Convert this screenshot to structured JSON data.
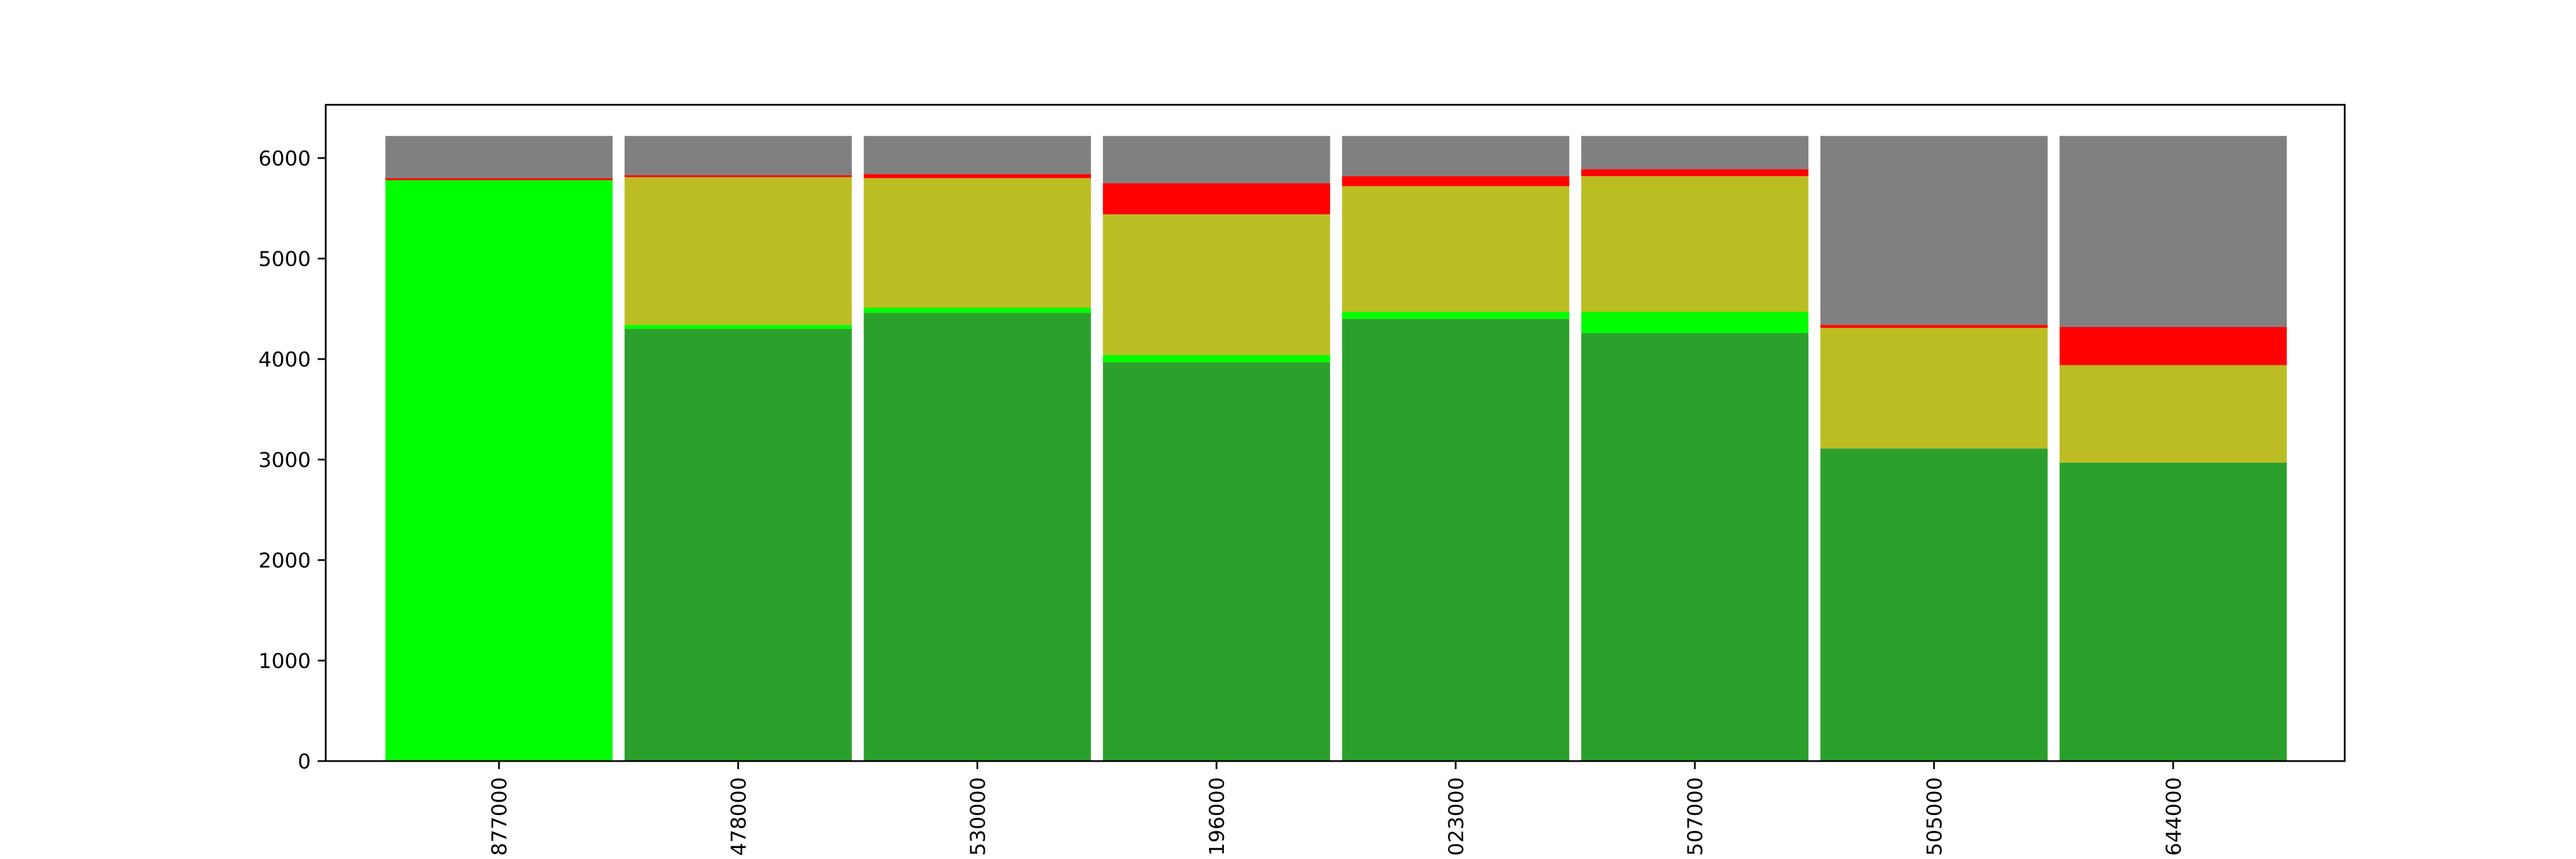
{
  "chart_data": {
    "type": "bar",
    "stacked": true,
    "categories": [
      "877000",
      "478000",
      "530000",
      "196000",
      "023000",
      "507000",
      "505000",
      "644000"
    ],
    "series": [
      {
        "color": "#2ca02c",
        "values": [
          0,
          4300,
          4460,
          3970,
          4400,
          4260,
          3110,
          2970
        ]
      },
      {
        "color": "#00ff00",
        "values": [
          5780,
          40,
          50,
          70,
          70,
          210,
          0,
          0
        ]
      },
      {
        "color": "#bcbd22",
        "values": [
          0,
          1470,
          1290,
          1400,
          1250,
          1350,
          1200,
          970
        ]
      },
      {
        "color": "#ff0000",
        "values": [
          20,
          20,
          40,
          310,
          100,
          70,
          30,
          380
        ]
      },
      {
        "color": "#808080",
        "values": [
          420,
          390,
          380,
          470,
          400,
          330,
          1880,
          1900
        ]
      }
    ],
    "yticks": [
      0,
      1000,
      2000,
      3000,
      4000,
      5000,
      6000
    ],
    "ylim": [
      0,
      6530
    ],
    "grid": false,
    "legend": "none"
  }
}
